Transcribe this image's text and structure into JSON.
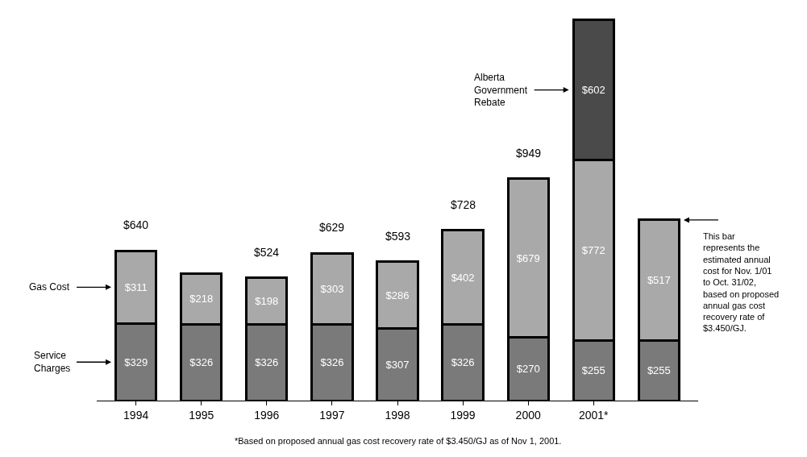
{
  "chart_data": {
    "type": "bar",
    "stacked": true,
    "categories": [
      "1994",
      "1995",
      "1996",
      "1997",
      "1998",
      "1999",
      "2000",
      "2001*",
      null
    ],
    "series": [
      {
        "name": "Service Charges",
        "color": "#7a7a7a",
        "values": [
          329,
          326,
          326,
          326,
          307,
          326,
          270,
          255,
          255
        ],
        "value_labels": [
          "$329",
          "$326",
          "$326",
          "$326",
          "$307",
          "$326",
          "$270",
          "$255",
          "$255"
        ]
      },
      {
        "name": "Gas Cost",
        "color": "#a9a9a9",
        "values": [
          311,
          218,
          198,
          303,
          286,
          402,
          679,
          772,
          517
        ],
        "value_labels": [
          "$311",
          "$218",
          "$198",
          "$303",
          "$286",
          "$402",
          "$679",
          "$772",
          "$517"
        ]
      },
      {
        "name": "Alberta Government Rebate",
        "color": "#4a4a4a",
        "values": [
          null,
          null,
          null,
          null,
          null,
          null,
          null,
          602,
          null
        ],
        "value_labels": [
          null,
          null,
          null,
          null,
          null,
          null,
          null,
          "$602",
          null
        ]
      }
    ],
    "totals": [
      "$640",
      null,
      "$524",
      "$629",
      "$593",
      "$728",
      "$949",
      null,
      null
    ],
    "annotations": [
      "This bar represents the estimated annual cost for Nov. 1/01 to Oct. 31/02, based on proposed annual gas cost recovery rate of $3.450/GJ.",
      "*Based on proposed annual gas cost recovery rate of $3.450/GJ as of Nov 1, 2001."
    ],
    "legend": "left",
    "grid": false
  }
}
